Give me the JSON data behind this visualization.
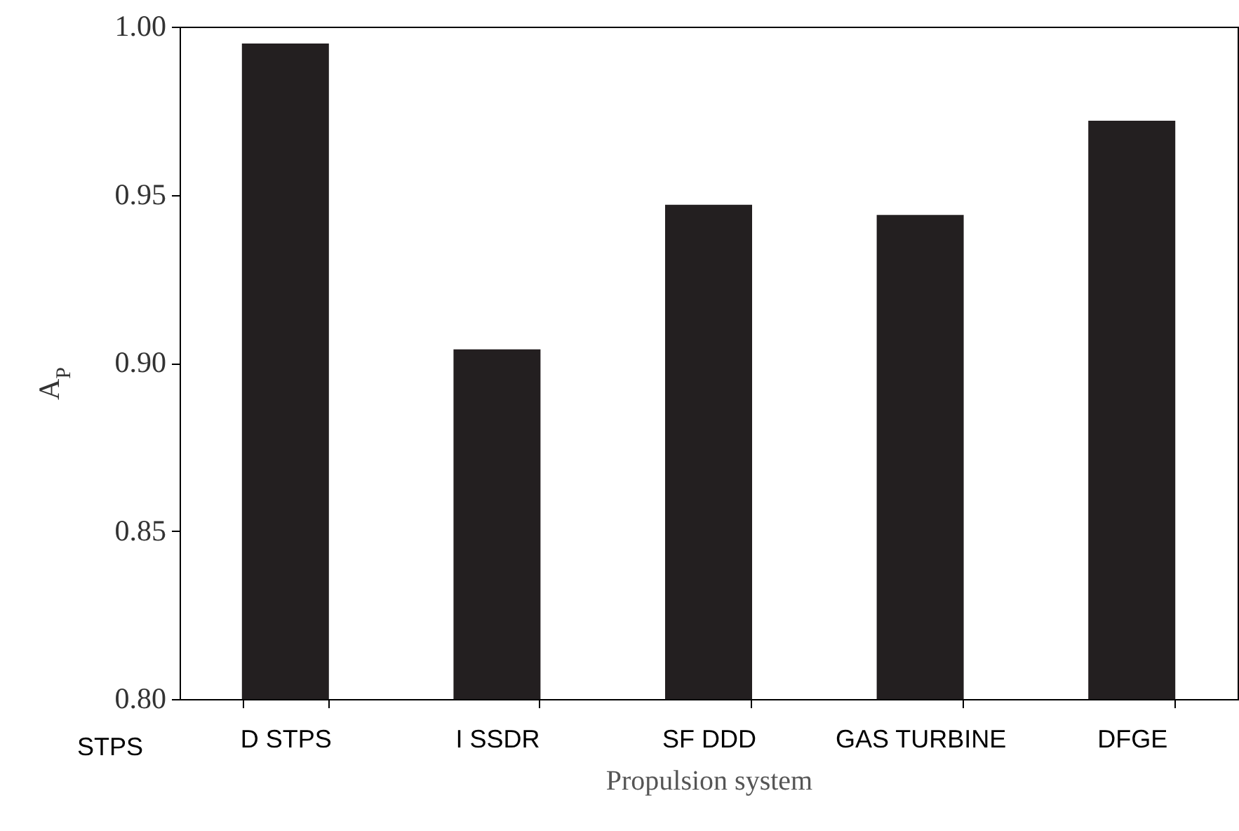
{
  "chart_data": {
    "type": "bar",
    "categories": [
      "D STPS",
      "I SSDR",
      "SF DDD",
      "GAS TURBINE",
      "DFGE"
    ],
    "values": [
      0.995,
      0.904,
      0.947,
      0.944,
      0.972
    ],
    "color": "#231f20",
    "xlabel": "Propulsion system",
    "ylabel": "A$_{P}$",
    "ylim": [
      0.8,
      1.0
    ],
    "yticks": [
      {
        "value": 0.8,
        "label": "0.80"
      },
      0.85,
      {
        "value": 0.9,
        "label": "0.90"
      },
      0.95,
      {
        "value": 1.0,
        "label": "1.00"
      }
    ],
    "annotations": [
      "STPS"
    ],
    "grid": false
  }
}
